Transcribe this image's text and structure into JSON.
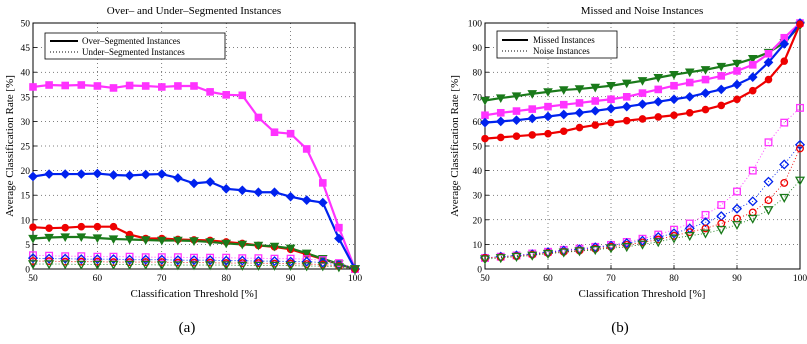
{
  "figure": {
    "subcaptions": [
      "(a)",
      "(b)"
    ]
  },
  "chart_data": [
    {
      "type": "line",
      "title": "Over– and Under–Segmented Instances",
      "xlabel": "Classification Threshold [%]",
      "ylabel": "Average Classification Rate [%]",
      "xlim": [
        50,
        100
      ],
      "ylim": [
        0,
        50
      ],
      "xticks": [
        50,
        60,
        70,
        80,
        90,
        100
      ],
      "yticks": [
        0,
        5,
        10,
        15,
        20,
        25,
        30,
        35,
        40,
        45,
        50
      ],
      "grid": true,
      "legend_position": "top-left",
      "legend": [
        {
          "label": "Over–Segmented Instances",
          "style": "solid"
        },
        {
          "label": "Under–Segmented Instances",
          "style": "dotted"
        }
      ],
      "x": [
        50,
        52.5,
        55,
        57.5,
        60,
        62.5,
        65,
        67.5,
        70,
        72.5,
        75,
        77.5,
        80,
        82.5,
        85,
        87.5,
        90,
        92.5,
        95,
        97.5,
        100
      ],
      "series": [
        {
          "color": "#ff33ff",
          "marker": "square",
          "style": "solid",
          "values": [
            37.0,
            37.4,
            37.3,
            37.4,
            37.2,
            36.8,
            37.3,
            37.2,
            37.0,
            37.2,
            37.2,
            36.0,
            35.4,
            35.3,
            30.8,
            27.8,
            27.5,
            24.4,
            17.5,
            8.4,
            0.0
          ]
        },
        {
          "color": "#0022ee",
          "marker": "diamond",
          "style": "solid",
          "values": [
            18.8,
            19.3,
            19.3,
            19.3,
            19.4,
            19.1,
            19.0,
            19.2,
            19.3,
            18.5,
            17.4,
            17.7,
            16.3,
            16.0,
            15.6,
            15.6,
            14.7,
            14.0,
            13.5,
            6.2,
            0.0
          ]
        },
        {
          "color": "#ee0000",
          "marker": "circle",
          "style": "solid",
          "values": [
            8.5,
            8.3,
            8.4,
            8.6,
            8.6,
            8.6,
            7.0,
            6.2,
            6.2,
            6.0,
            5.9,
            5.8,
            5.5,
            5.2,
            4.8,
            4.5,
            4.0,
            3.0,
            2.0,
            1.0,
            0.0
          ]
        },
        {
          "color": "#1a7a1a",
          "marker": "triangle-down",
          "style": "solid",
          "values": [
            6.2,
            6.4,
            6.5,
            6.5,
            6.3,
            6.1,
            6.0,
            5.9,
            5.8,
            5.8,
            5.7,
            5.5,
            5.2,
            5.0,
            4.8,
            4.6,
            4.2,
            3.2,
            2.1,
            1.0,
            0.0
          ]
        },
        {
          "color": "#ff33ff",
          "marker": "square",
          "style": "dotted",
          "values": [
            2.8,
            2.7,
            2.6,
            2.6,
            2.5,
            2.5,
            2.5,
            2.4,
            2.4,
            2.4,
            2.3,
            2.3,
            2.3,
            2.2,
            2.2,
            2.1,
            2.1,
            2.0,
            1.8,
            1.2,
            0.0
          ]
        },
        {
          "color": "#0022ee",
          "marker": "diamond",
          "style": "dotted",
          "values": [
            2.2,
            2.1,
            2.1,
            2.0,
            2.0,
            2.0,
            1.9,
            1.9,
            1.9,
            1.8,
            1.8,
            1.8,
            1.7,
            1.7,
            1.6,
            1.6,
            1.5,
            1.5,
            1.3,
            0.8,
            0.0
          ]
        },
        {
          "color": "#ee0000",
          "marker": "circle",
          "style": "dotted",
          "values": [
            1.6,
            1.6,
            1.5,
            1.5,
            1.5,
            1.4,
            1.4,
            1.4,
            1.4,
            1.3,
            1.3,
            1.3,
            1.2,
            1.2,
            1.2,
            1.1,
            1.1,
            1.0,
            0.9,
            0.6,
            0.0
          ]
        },
        {
          "color": "#1a7a1a",
          "marker": "triangle-down",
          "style": "dotted",
          "values": [
            1.0,
            1.0,
            1.0,
            0.9,
            0.9,
            0.9,
            0.9,
            0.9,
            0.8,
            0.8,
            0.8,
            0.8,
            0.8,
            0.7,
            0.7,
            0.7,
            0.7,
            0.6,
            0.6,
            0.4,
            0.0
          ]
        }
      ]
    },
    {
      "type": "line",
      "title": "Missed and Noise Instances",
      "xlabel": "Classification Threshold [%]",
      "ylabel": "Average Classification Rate [%]",
      "xlim": [
        50,
        100
      ],
      "ylim": [
        0,
        100
      ],
      "xticks": [
        50,
        60,
        70,
        80,
        90,
        100
      ],
      "yticks": [
        0,
        10,
        20,
        30,
        40,
        50,
        60,
        70,
        80,
        90,
        100
      ],
      "grid": true,
      "legend_position": "top-left",
      "legend": [
        {
          "label": "Missed Instances",
          "style": "solid"
        },
        {
          "label": "Noise Instances",
          "style": "dotted"
        }
      ],
      "x": [
        50,
        52.5,
        55,
        57.5,
        60,
        62.5,
        65,
        67.5,
        70,
        72.5,
        75,
        77.5,
        80,
        82.5,
        85,
        87.5,
        90,
        92.5,
        95,
        97.5,
        100
      ],
      "series": [
        {
          "color": "#1a7a1a",
          "marker": "triangle-down",
          "style": "solid",
          "values": [
            68.5,
            69.5,
            70.3,
            71.2,
            72.0,
            72.8,
            73.2,
            73.8,
            74.5,
            75.5,
            76.5,
            77.8,
            79.0,
            80.0,
            81.0,
            82.3,
            83.5,
            85.5,
            88.0,
            92.0,
            99.0
          ]
        },
        {
          "color": "#ff33ff",
          "marker": "square",
          "style": "solid",
          "values": [
            62.5,
            63.5,
            64.2,
            65.0,
            66.0,
            66.8,
            67.5,
            68.3,
            69.0,
            70.0,
            71.5,
            73.0,
            74.5,
            75.8,
            77.0,
            78.5,
            80.5,
            83.0,
            87.5,
            94.0,
            100.0
          ]
        },
        {
          "color": "#0022ee",
          "marker": "diamond",
          "style": "solid",
          "values": [
            59.5,
            60.0,
            60.5,
            61.2,
            62.0,
            62.8,
            63.5,
            64.3,
            65.2,
            66.0,
            67.0,
            68.0,
            69.0,
            70.0,
            71.5,
            73.0,
            75.0,
            78.0,
            84.0,
            91.5,
            100.0
          ]
        },
        {
          "color": "#ee0000",
          "marker": "circle",
          "style": "solid",
          "values": [
            53.0,
            53.5,
            54.0,
            54.5,
            55.0,
            56.0,
            57.5,
            58.5,
            59.5,
            60.3,
            61.0,
            61.8,
            62.5,
            63.5,
            64.8,
            66.5,
            69.0,
            72.5,
            77.0,
            84.5,
            99.5
          ]
        },
        {
          "color": "#ff33ff",
          "marker": "square",
          "style": "dotted",
          "values": [
            4.5,
            5.0,
            5.5,
            6.3,
            7.0,
            7.8,
            8.3,
            9.0,
            9.8,
            11.0,
            12.3,
            14.0,
            16.0,
            18.5,
            22.0,
            26.0,
            31.5,
            40.0,
            51.5,
            59.5,
            65.5
          ]
        },
        {
          "color": "#0022ee",
          "marker": "diamond",
          "style": "dotted",
          "values": [
            4.5,
            5.0,
            5.5,
            6.0,
            6.8,
            7.5,
            8.0,
            8.8,
            9.5,
            10.5,
            11.5,
            13.0,
            14.5,
            16.5,
            19.0,
            21.5,
            24.5,
            27.5,
            35.5,
            42.5,
            50.5
          ]
        },
        {
          "color": "#ee0000",
          "marker": "circle",
          "style": "dotted",
          "values": [
            4.5,
            4.8,
            5.2,
            5.8,
            6.5,
            7.0,
            7.5,
            8.2,
            9.0,
            9.8,
            10.8,
            12.0,
            13.5,
            15.0,
            16.5,
            18.5,
            20.5,
            23.0,
            28.0,
            35.0,
            49.0
          ]
        },
        {
          "color": "#1a7a1a",
          "marker": "triangle-down",
          "style": "dotted",
          "values": [
            4.0,
            4.5,
            5.0,
            5.5,
            6.2,
            6.8,
            7.3,
            7.8,
            8.5,
            9.0,
            10.0,
            11.0,
            12.5,
            13.5,
            14.5,
            16.0,
            18.0,
            20.5,
            24.0,
            29.0,
            36.0
          ]
        }
      ]
    }
  ]
}
